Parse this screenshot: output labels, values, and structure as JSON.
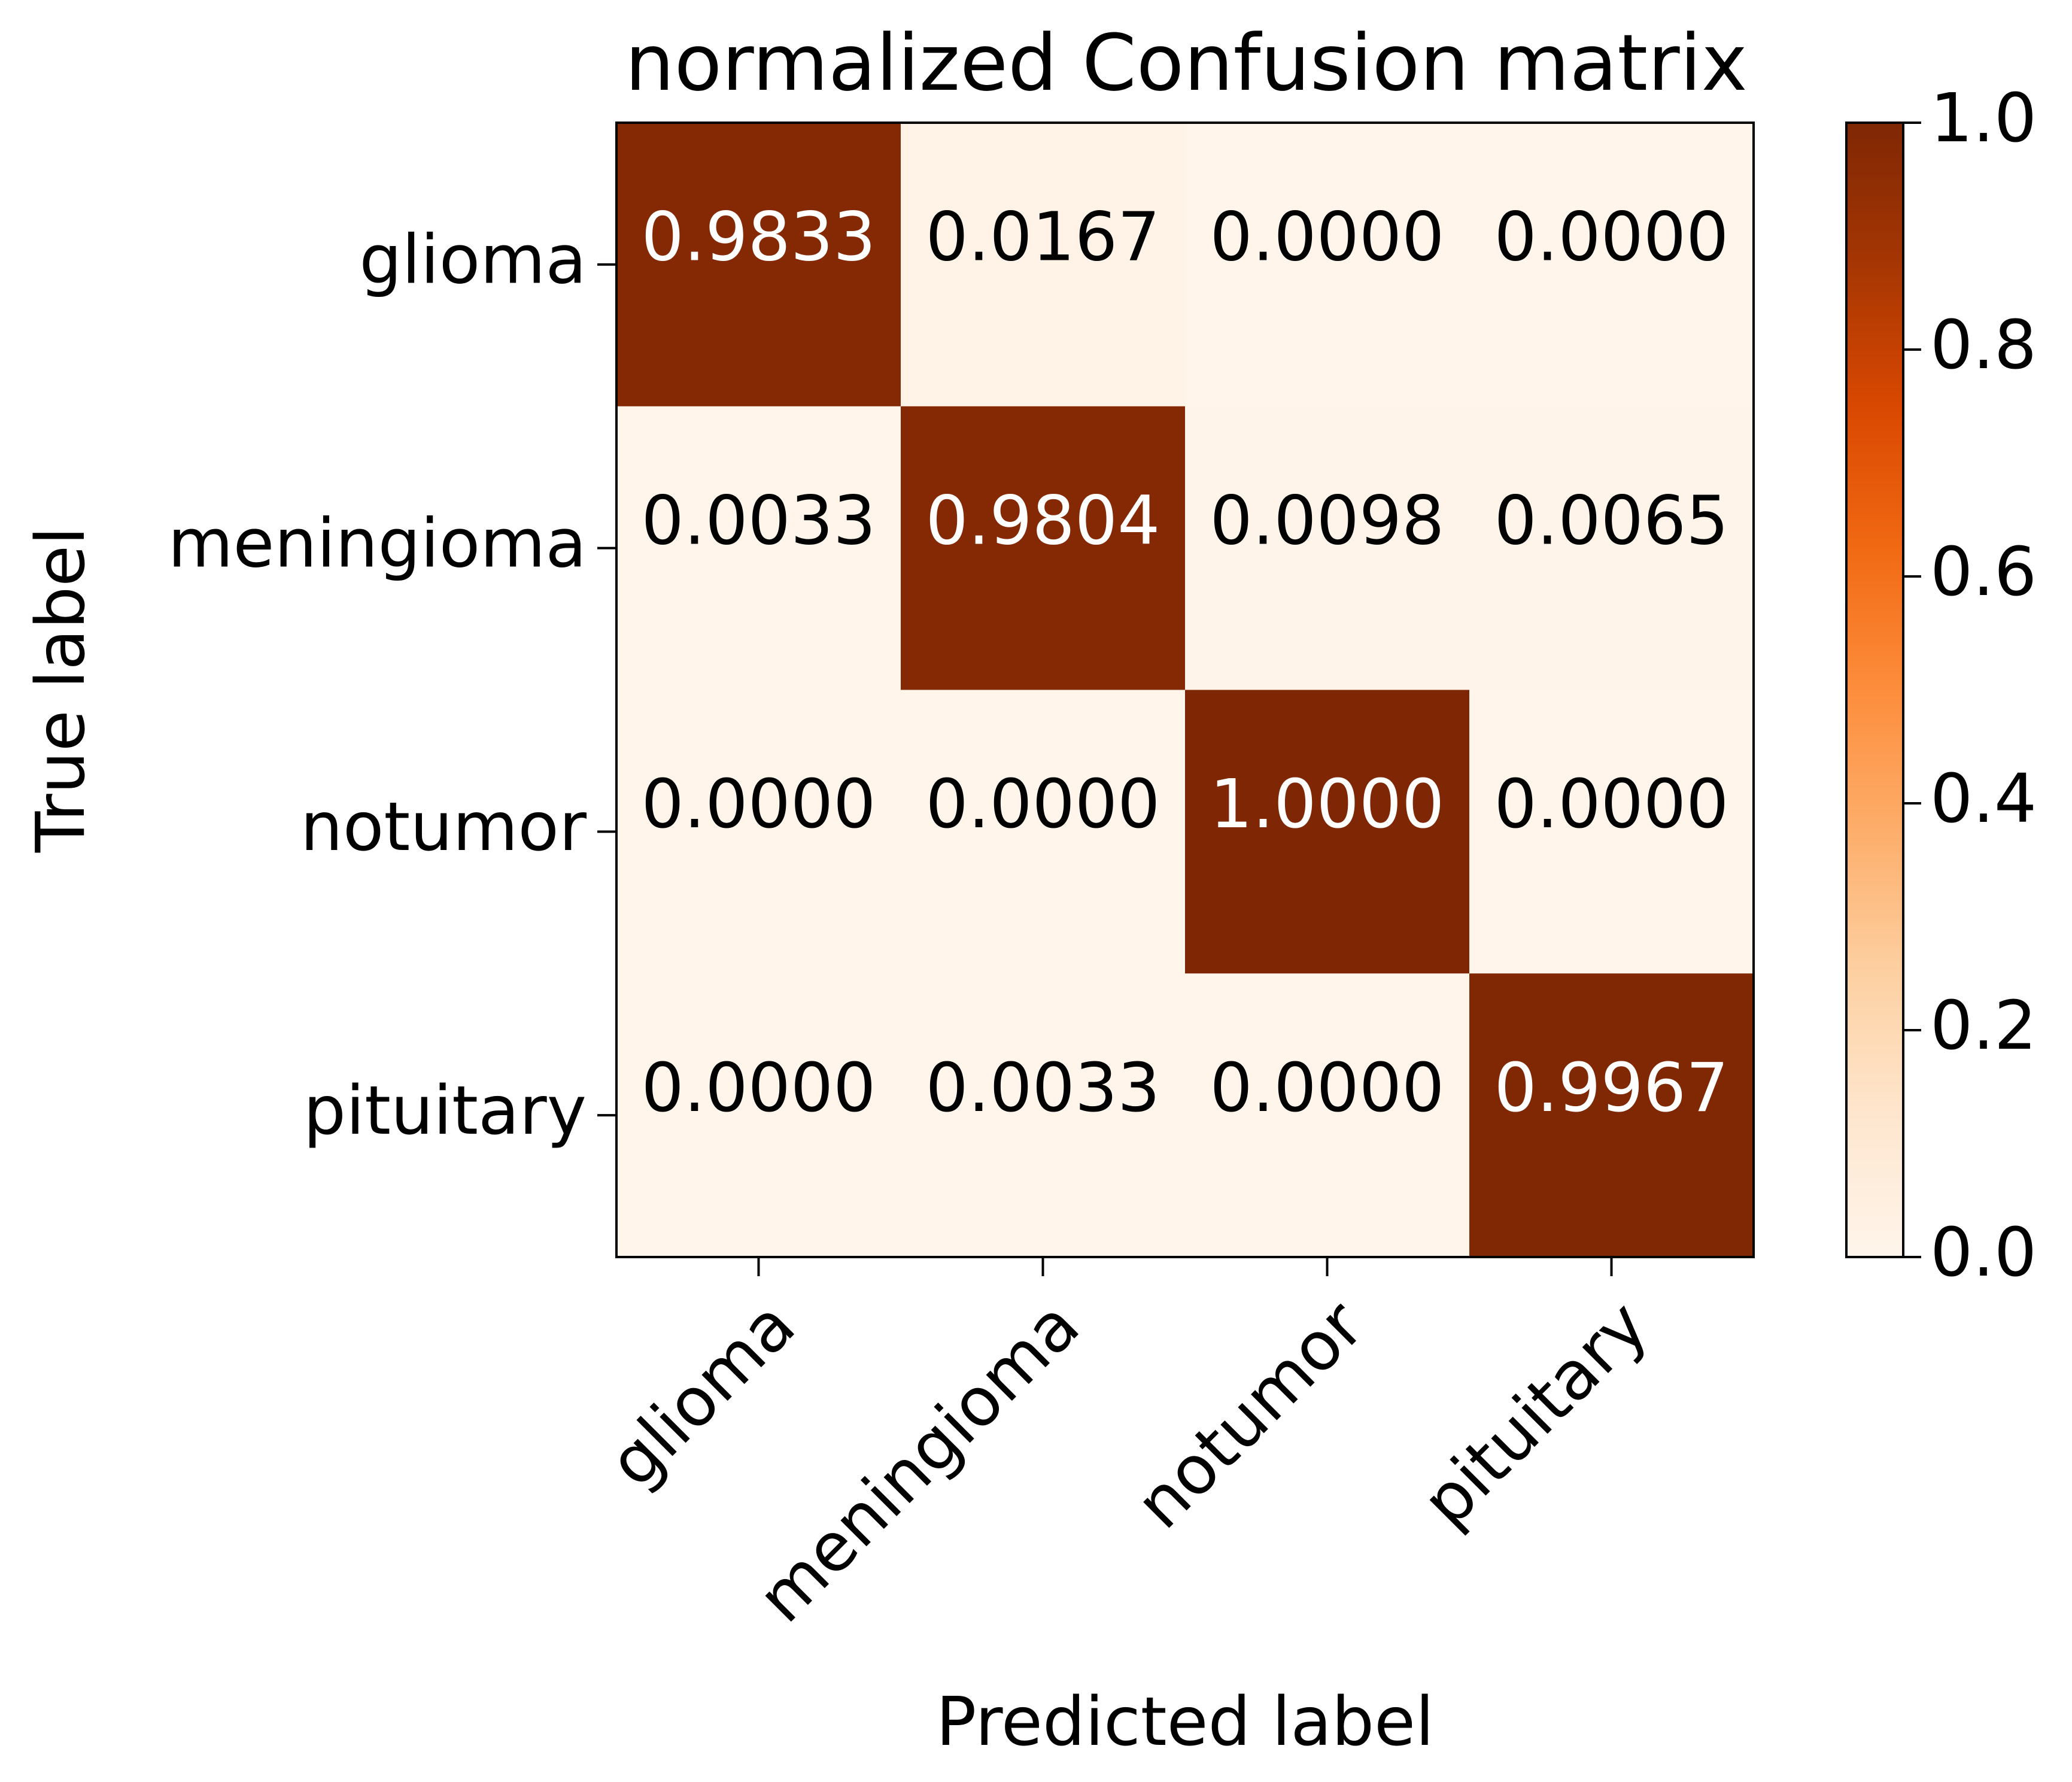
{
  "chart_data": {
    "type": "heatmap",
    "title": "normalized Confusion matrix",
    "xlabel": "Predicted label",
    "ylabel": "True label",
    "x_categories": [
      "glioma",
      "meningioma",
      "notumor",
      "pituitary"
    ],
    "y_categories": [
      "glioma",
      "meningioma",
      "notumor",
      "pituitary"
    ],
    "values": [
      [
        0.9833,
        0.0167,
        0.0,
        0.0
      ],
      [
        0.0033,
        0.9804,
        0.0098,
        0.0065
      ],
      [
        0.0,
        0.0,
        1.0,
        0.0
      ],
      [
        0.0,
        0.0033,
        0.0,
        0.9967
      ]
    ],
    "value_labels": [
      [
        "0.9833",
        "0.0167",
        "0.0000",
        "0.0000"
      ],
      [
        "0.0033",
        "0.9804",
        "0.0098",
        "0.0065"
      ],
      [
        "0.0000",
        "0.0000",
        "1.0000",
        "0.0000"
      ],
      [
        "0.0000",
        "0.0033",
        "0.0000",
        "0.9967"
      ]
    ],
    "colorscale": "Oranges",
    "color_range": [
      0,
      1
    ],
    "colorbar_ticks": [
      0.0,
      0.2,
      0.4,
      0.6,
      0.8,
      1.0
    ],
    "colorbar_tick_labels": [
      "0.0",
      "0.2",
      "0.4",
      "0.6",
      "0.8",
      "1.0"
    ],
    "x_tick_rotation_deg": 45,
    "grid": false
  }
}
